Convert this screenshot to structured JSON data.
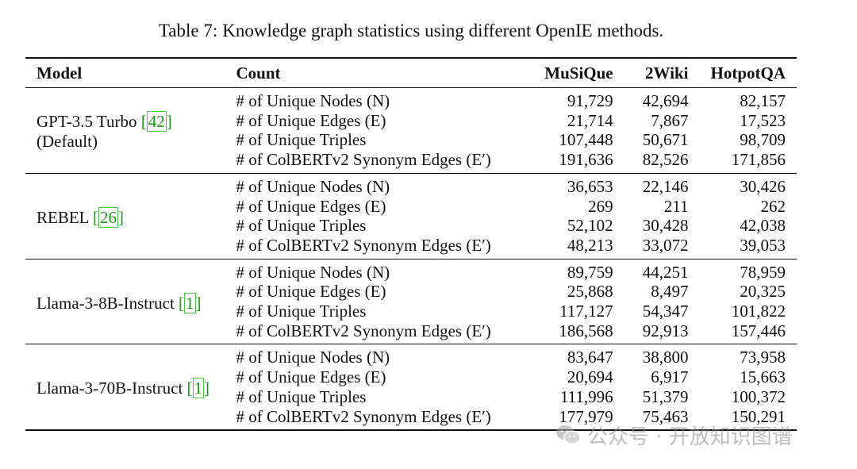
{
  "caption": {
    "label": "Table 7:",
    "text": "Knowledge graph statistics using different OpenIE methods."
  },
  "columns": [
    "Model",
    "Count",
    "MuSiQue",
    "2Wiki",
    "HotpotQA"
  ],
  "groups": [
    {
      "model_lines": [
        "GPT-3.5 Turbo",
        "(Default)"
      ],
      "cite": "42",
      "rows": [
        {
          "count": "# of Unique Nodes (N)",
          "musique": "91,729",
          "twowiki": "42,694",
          "hotpotqa": "82,157"
        },
        {
          "count": "# of Unique Edges (E)",
          "musique": "21,714",
          "twowiki": "7,867",
          "hotpotqa": "17,523"
        },
        {
          "count": "# of Unique Triples",
          "musique": "107,448",
          "twowiki": "50,671",
          "hotpotqa": "98,709"
        },
        {
          "count": "# of ColBERTv2 Synonym Edges (E′)",
          "musique": "191,636",
          "twowiki": "82,526",
          "hotpotqa": "171,856"
        }
      ]
    },
    {
      "model_lines": [
        "REBEL"
      ],
      "cite": "26",
      "rows": [
        {
          "count": "# of Unique Nodes (N)",
          "musique": "36,653",
          "twowiki": "22,146",
          "hotpotqa": "30,426"
        },
        {
          "count": "# of Unique Edges (E)",
          "musique": "269",
          "twowiki": "211",
          "hotpotqa": "262"
        },
        {
          "count": "# of Unique Triples",
          "musique": "52,102",
          "twowiki": "30,428",
          "hotpotqa": "42,038"
        },
        {
          "count": "# of ColBERTv2 Synonym Edges (E′)",
          "musique": "48,213",
          "twowiki": "33,072",
          "hotpotqa": "39,053"
        }
      ]
    },
    {
      "model_lines": [
        "Llama-3-8B-Instruct"
      ],
      "cite": "1",
      "rows": [
        {
          "count": "# of Unique Nodes (N)",
          "musique": "89,759",
          "twowiki": "44,251",
          "hotpotqa": "78,959"
        },
        {
          "count": "# of Unique Edges (E)",
          "musique": "25,868",
          "twowiki": "8,497",
          "hotpotqa": "20,325"
        },
        {
          "count": "# of Unique Triples",
          "musique": "117,127",
          "twowiki": "54,347",
          "hotpotqa": "101,822"
        },
        {
          "count": "# of ColBERTv2 Synonym Edges (E′)",
          "musique": "186,568",
          "twowiki": "92,913",
          "hotpotqa": "157,446"
        }
      ]
    },
    {
      "model_lines": [
        "Llama-3-70B-Instruct"
      ],
      "cite": "1",
      "rows": [
        {
          "count": "# of Unique Nodes (N)",
          "musique": "83,647",
          "twowiki": "38,800",
          "hotpotqa": "73,958"
        },
        {
          "count": "# of Unique Edges (E)",
          "musique": "20,694",
          "twowiki": "6,917",
          "hotpotqa": "15,663"
        },
        {
          "count": "# of Unique Triples",
          "musique": "111,996",
          "twowiki": "51,379",
          "hotpotqa": "100,372"
        },
        {
          "count": "# of ColBERTv2 Synonym Edges (E′)",
          "musique": "177,979",
          "twowiki": "75,463",
          "hotpotqa": "150,291"
        }
      ]
    }
  ],
  "watermark": {
    "text": "公众号 · 开放知识图谱",
    "icon": "wechat-icon"
  }
}
